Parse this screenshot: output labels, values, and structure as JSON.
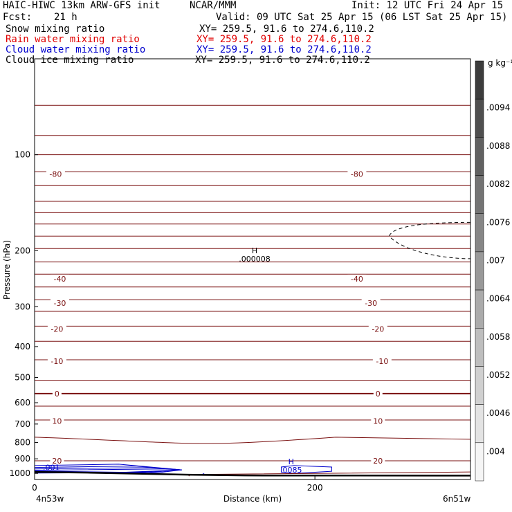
{
  "header": {
    "model": "HAIC-HIWC 13km ARW-GFS init",
    "org": "NCAR/MMM",
    "init": "Init: 12 UTC Fri 24 Apr 15",
    "fcst_label": "Fcst:",
    "fcst_value": "21 h",
    "valid": "Valid: 09 UTC Sat 25 Apr 15 (06 LST Sat 25 Apr 15)",
    "fields": [
      {
        "name": "Snow mixing ratio",
        "xy": "XY= 259.5, 91.6 to 274.6,110.2",
        "color": "#000000"
      },
      {
        "name": "Rain water mixing ratio",
        "xy": "XY= 259.5, 91.6 to 274.6,110.2",
        "color": "#e00000"
      },
      {
        "name": "Cloud water mixing ratio",
        "xy": "XY= 259.5, 91.6 to 274.6,110.2",
        "color": "#0000cc"
      },
      {
        "name": "Cloud ice mixing ratio",
        "xy": "XY= 259.5, 91.6 to 274.6,110.2",
        "color": "#000000"
      }
    ]
  },
  "chart_data": {
    "type": "contour",
    "ylabel": "Pressure (hPa)",
    "xlabel": "Distance (km)",
    "x_start_label": "4n53w",
    "x_end_label": "6n51w",
    "xlim": [
      0,
      311
    ],
    "ylim": [
      1045,
      50
    ],
    "y_scale": "log",
    "x_ticks": [
      0,
      200
    ],
    "y_ticks": [
      100,
      200,
      300,
      400,
      500,
      600,
      700,
      800,
      900,
      1000
    ],
    "colors": {
      "temperature": "#7a1010",
      "cloud_water": "#0000cc",
      "cloud_ice": "#000000",
      "terrain": "#000000"
    },
    "temperature_contours": {
      "freezing_level_value": 0,
      "labels": [
        {
          "value": "-80",
          "x": [
            15,
            230
          ],
          "p": 115
        },
        {
          "value": "-40",
          "x": [
            18,
            230
          ],
          "p": 245
        },
        {
          "value": "-30",
          "x": [
            18,
            240
          ],
          "p": 292
        },
        {
          "value": "-20",
          "x": [
            16,
            245
          ],
          "p": 352
        },
        {
          "value": "-10",
          "x": [
            16,
            248
          ],
          "p": 445
        },
        {
          "value": "0",
          "x": [
            16,
            245
          ],
          "p": 562
        },
        {
          "value": "10",
          "x": [
            16,
            245
          ],
          "p": 685
        },
        {
          "value": "20",
          "x": [
            16,
            245
          ],
          "p": 913
        }
      ],
      "levels_hPa": [
        70,
        87,
        100,
        113,
        125,
        140,
        152,
        165,
        180,
        197,
        217,
        237,
        260,
        285,
        310,
        345,
        385,
        440,
        510,
        562,
        615,
        680,
        770,
        913
      ]
    },
    "max_markers": [
      {
        "symbol": "H",
        "value": ".000008",
        "x": 157,
        "p": 212,
        "color": "#000000"
      },
      {
        "symbol": "H",
        "value": ".0085",
        "x": 183,
        "p": 975,
        "color": "#0000cc"
      }
    ],
    "cloud_water_labels": [
      {
        "value": ".001",
        "x": 12,
        "p": 958
      }
    ],
    "colorbar": {
      "unit": "g kg⁻¹",
      "tick_labels": [
        ".0094",
        ".0088",
        ".0082",
        ".0076",
        ".007",
        ".0064",
        ".0058",
        ".0052",
        ".0046",
        ".004"
      ]
    }
  }
}
